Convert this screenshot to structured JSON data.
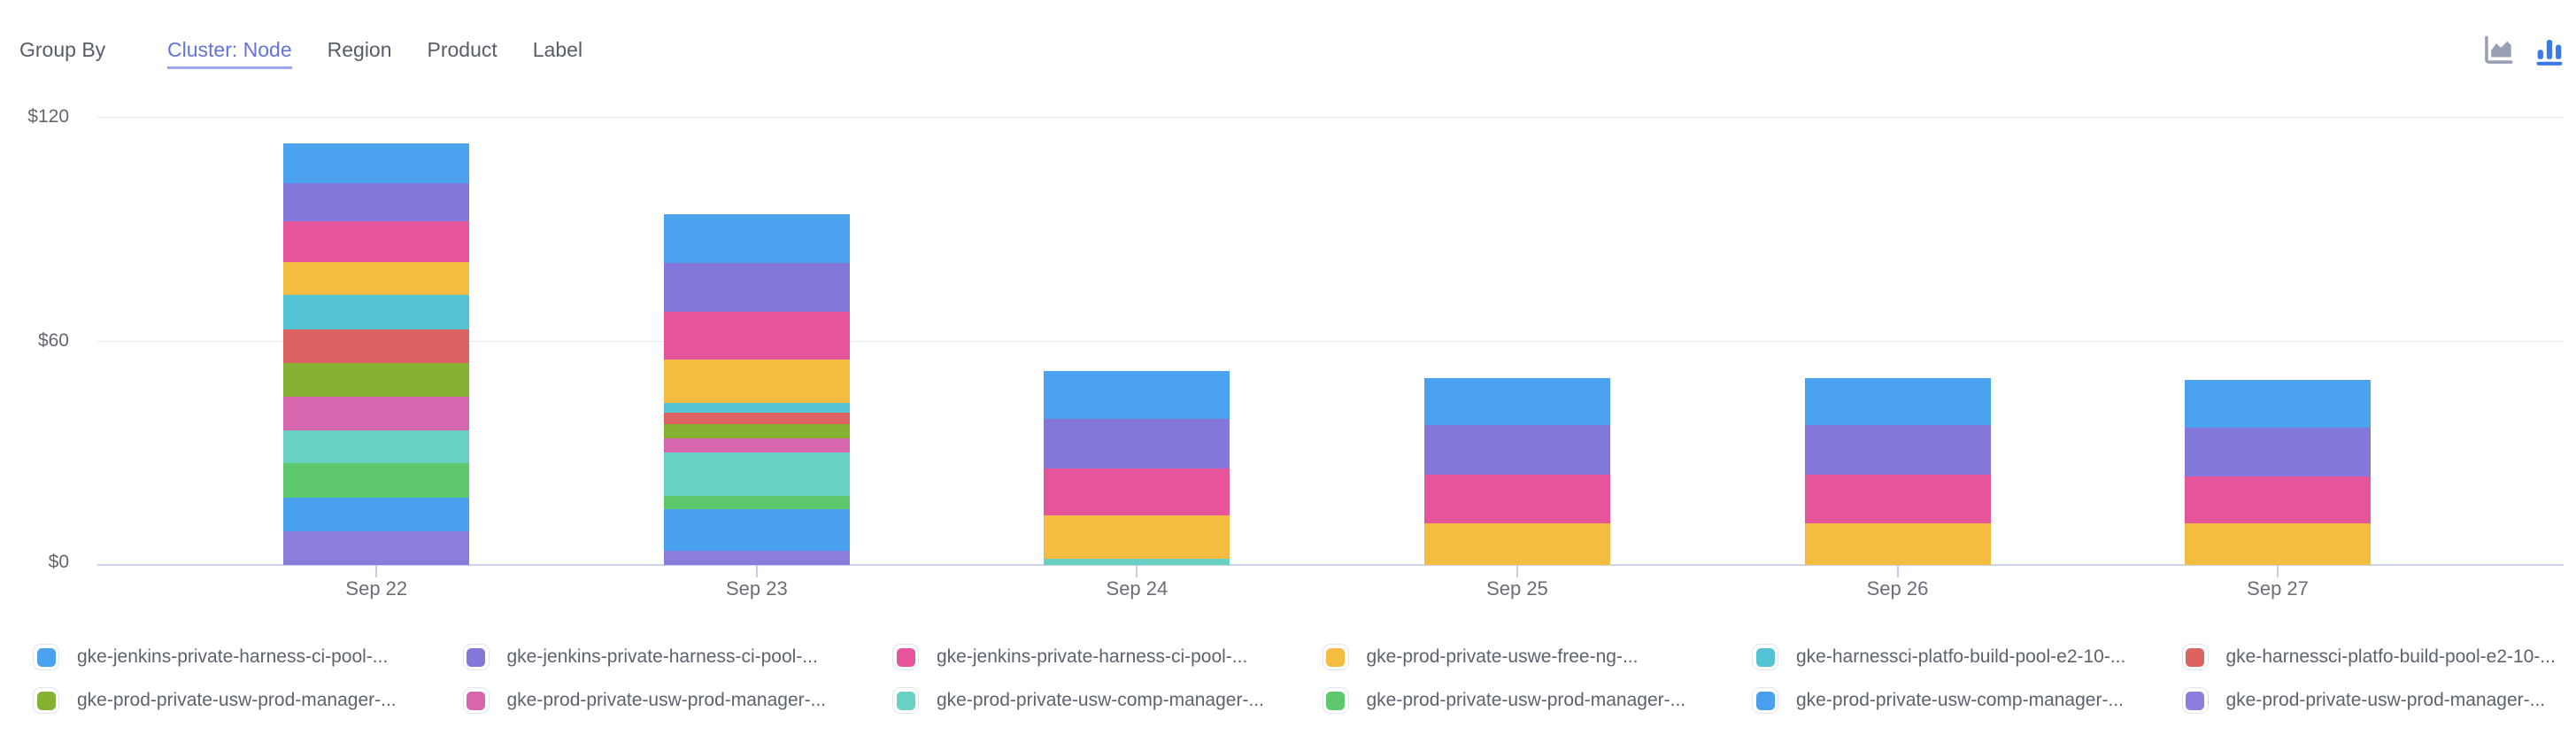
{
  "header": {
    "group_by_label": "Group By",
    "tabs": [
      {
        "label": "Cluster: Node",
        "active": true
      },
      {
        "label": "Region",
        "active": false
      },
      {
        "label": "Product",
        "active": false
      },
      {
        "label": "Label",
        "active": false
      }
    ],
    "chart_type_toggle": {
      "options": [
        "area",
        "bar"
      ],
      "active": "bar"
    }
  },
  "colors": {
    "header_text": "#575c69",
    "active_tab": "#6473d9",
    "tab_underline": "#9aa6ee",
    "axis_label": "#64676f",
    "gridline": "#e8e8eb",
    "axis_line": "#ccd4ec",
    "tick": "#c5cee8",
    "legend_text": "#5d6270",
    "swatch_border": "#e3e5f0",
    "icon_inactive": "#99a0b4",
    "icon_active": "#3d79e6"
  },
  "chart_data": {
    "type": "bar",
    "stacked": true,
    "unit": "$",
    "categories": [
      "Sep 22",
      "Sep 23",
      "Sep 24",
      "Sep 25",
      "Sep 26",
      "Sep 27"
    ],
    "ylim": [
      0,
      120
    ],
    "ytick_values": [
      0,
      60,
      120
    ],
    "ytick_labels": [
      "$0",
      "$60",
      "$120"
    ],
    "grid": true,
    "legend_position": "bottom",
    "series": [
      {
        "name": "gke-jenkins-private-harness-ci-pool-...",
        "color": "#4ba2ef",
        "values": [
          10.7,
          13.0,
          12.8,
          12.6,
          12.6,
          12.8
        ]
      },
      {
        "name": "gke-jenkins-private-harness-ci-pool-...",
        "color": "#8377d9",
        "values": [
          10.2,
          13.0,
          13.3,
          13.3,
          13.3,
          13.0
        ]
      },
      {
        "name": "gke-jenkins-private-harness-ci-pool-...",
        "color": "#e6549c",
        "values": [
          10.7,
          13.0,
          12.6,
          13.0,
          13.0,
          12.6
        ]
      },
      {
        "name": "gke-prod-private-uswe-free-ng-...",
        "color": "#f4bc41",
        "values": [
          8.8,
          11.6,
          11.6,
          11.1,
          11.1,
          11.1
        ]
      },
      {
        "name": "gke-harnessci-platfo-build-pool-e2-10-...",
        "color": "#54c3d3",
        "values": [
          9.3,
          2.6,
          0,
          0,
          0,
          0
        ]
      },
      {
        "name": "gke-harnessci-platfo-build-pool-e2-10-...",
        "color": "#dc6361",
        "values": [
          9.0,
          3.1,
          0,
          0,
          0,
          0
        ]
      },
      {
        "name": "gke-prod-private-usw-prod-manager-...",
        "color": "#86b233",
        "values": [
          9.0,
          3.6,
          0,
          0,
          0,
          0
        ]
      },
      {
        "name": "gke-prod-private-usw-prod-manager-...",
        "color": "#d667af",
        "values": [
          9.0,
          4.0,
          0,
          0,
          0,
          0
        ]
      },
      {
        "name": "gke-prod-private-usw-comp-manager-...",
        "color": "#68d1c4",
        "values": [
          8.8,
          11.4,
          1.7,
          0,
          0,
          0
        ]
      },
      {
        "name": "gke-prod-private-usw-prod-manager-...",
        "color": "#5dc96c",
        "values": [
          9.3,
          3.6,
          0,
          0,
          0,
          0
        ]
      },
      {
        "name": "gke-prod-private-usw-comp-manager-...",
        "color": "#49a0ee",
        "values": [
          9.0,
          11.2,
          0,
          0,
          0,
          0
        ]
      },
      {
        "name": "gke-prod-private-usw-prod-manager-...",
        "color": "#8a7ddb",
        "values": [
          9.0,
          3.8,
          0,
          0,
          0,
          0
        ]
      }
    ]
  }
}
